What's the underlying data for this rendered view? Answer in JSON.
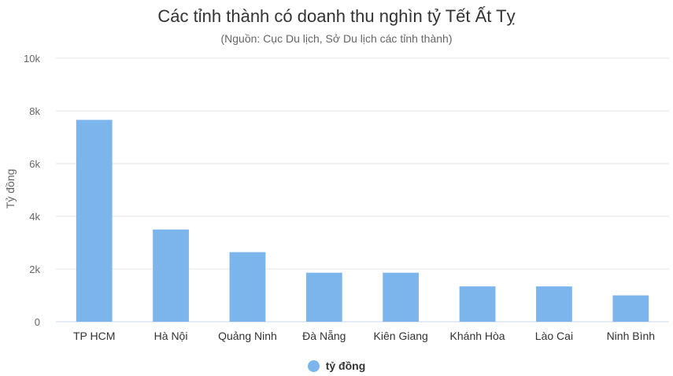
{
  "title": "Các tỉnh thành có doanh thu nghìn tỷ Tết Ất Tỵ",
  "subtitle": "(Nguồn: Cục Du lịch, Sở Du lịch các tỉnh thành)",
  "colors": {
    "bar": "#7cb5ec",
    "grid": "#e6e6e6",
    "text": "#666666",
    "title": "#333333"
  },
  "chart_data": {
    "type": "bar",
    "title": "Các tỉnh thành có doanh thu nghìn tỷ Tết Ất Tỵ",
    "subtitle": "(Nguồn: Cục Du lịch, Sở Du lịch các tỉnh thành)",
    "categories": [
      "TP HCM",
      "Hà Nội",
      "Quảng Ninh",
      "Đà Nẵng",
      "Kiên Giang",
      "Khánh Hòa",
      "Lào Cai",
      "Ninh Bình"
    ],
    "series": [
      {
        "name": "tỷ đồng",
        "values": [
          7660,
          3500,
          2640,
          1860,
          1860,
          1340,
          1340,
          1000
        ]
      }
    ],
    "xlabel": "",
    "ylabel": "Tỷ đồng",
    "ylim": [
      0,
      10000
    ],
    "yticks": [
      0,
      2000,
      4000,
      6000,
      8000,
      10000
    ],
    "ytick_labels": [
      "0",
      "2k",
      "4k",
      "6k",
      "8k",
      "10k"
    ],
    "grid": true,
    "legend_position": "bottom-center"
  }
}
